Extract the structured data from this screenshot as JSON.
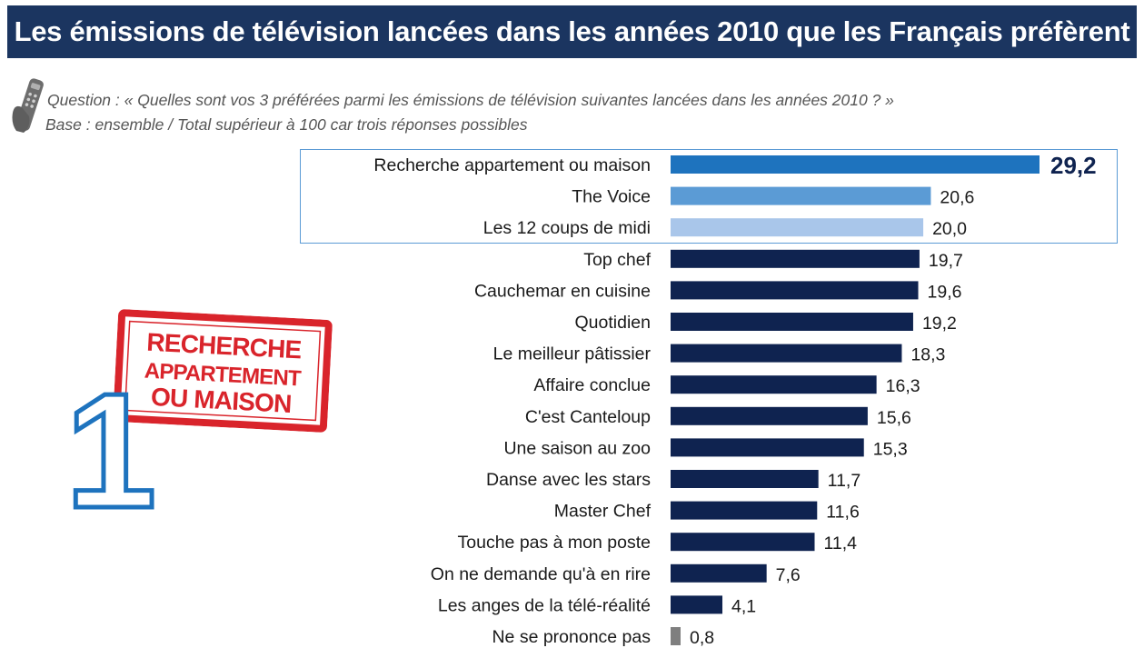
{
  "header": {
    "title": "Les émissions de télévision lancées dans les années 2010 que les Français préfèrent"
  },
  "question_text": "Question : « Quelles sont vos 3 préférées parmi les émissions de télévision suivantes lancées dans les années 2010 ? »",
  "base_text": "Base : ensemble / Total supérieur à 100 car trois réponses possibles",
  "icons": {
    "remote": "remote-control-icon"
  },
  "stamp": {
    "lines": [
      "RECHERCHE",
      "APPARTEMENT",
      "OU MAISON"
    ],
    "rank": "1",
    "color": "#d9242b"
  },
  "colors": {
    "title_bg": "#1b3560",
    "bar_rank1": "#1e73be",
    "bar_rank2": "#5b9bd5",
    "bar_rank3": "#a9c6ea",
    "bar_default": "#0f2350",
    "bar_nsp": "#7f7f7f",
    "highlight_border": "#5b9bd5"
  },
  "chart_data": {
    "type": "bar",
    "orientation": "horizontal",
    "categories": [
      "Recherche appartement ou maison",
      "The Voice",
      "Les 12 coups de midi",
      "Top chef",
      "Cauchemar en cuisine",
      "Quotidien",
      "Le meilleur pâtissier",
      "Affaire conclue",
      "C'est Canteloup",
      "Une saison au zoo",
      "Danse avec les stars",
      "Master Chef",
      "Touche pas à mon poste",
      "On ne demande qu'à en rire",
      "Les anges de la télé-réalité",
      "Ne se prononce pas"
    ],
    "values": [
      29.2,
      20.6,
      20.0,
      19.7,
      19.6,
      19.2,
      18.3,
      16.3,
      15.6,
      15.3,
      11.7,
      11.6,
      11.4,
      7.6,
      4.1,
      0.8
    ],
    "value_labels": [
      "29,2",
      "20,6",
      "20,0",
      "19,7",
      "19,6",
      "19,2",
      "18,3",
      "16,3",
      "15,6",
      "15,3",
      "11,7",
      "11,6",
      "11,4",
      "7,6",
      "4,1",
      "0,8"
    ],
    "title": "",
    "xlabel": "",
    "ylabel": "",
    "xlim": [
      0,
      29.2
    ],
    "grid": false,
    "legend": "none",
    "highlighted_top": 3
  }
}
